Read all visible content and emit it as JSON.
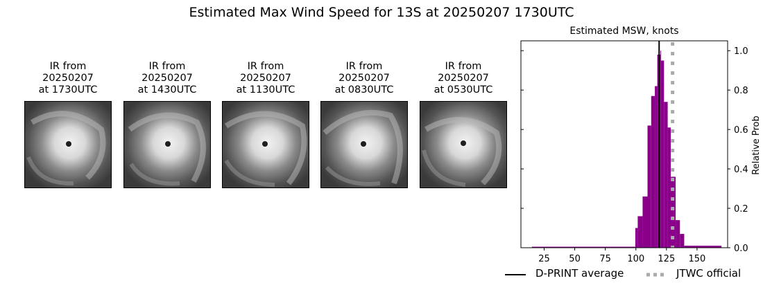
{
  "suptitle": "Estimated Max Wind Speed for 13S at 20250207 1730UTC",
  "panels": [
    {
      "title": "IR from\n20250207\nat 1730UTC",
      "line1": "IR from",
      "line2": "20250207",
      "line3": "at 1730UTC"
    },
    {
      "title": "IR from\n20250207\nat 1430UTC",
      "line1": "IR from",
      "line2": "20250207",
      "line3": "at 1430UTC"
    },
    {
      "title": "IR from\n20250207\nat 1130UTC",
      "line1": "IR from",
      "line2": "20250207",
      "line3": "at 1130UTC"
    },
    {
      "title": "IR from\n20250207\nat 0830UTC",
      "line1": "IR from",
      "line2": "20250207",
      "line3": "at 0830UTC"
    },
    {
      "title": "IR from\n20250207\nat 0530UTC",
      "line1": "IR from",
      "line2": "20250207",
      "line3": "at 0530UTC"
    }
  ],
  "chart_data": {
    "type": "bar",
    "title": "Estimated MSW, knots",
    "xlabel": "",
    "ylabel": "Relative Prob",
    "xlim": [
      6,
      175
    ],
    "ylim": [
      0,
      1.05
    ],
    "xticks": [
      25,
      50,
      75,
      100,
      125,
      150
    ],
    "yticks": [
      0.0,
      0.2,
      0.4,
      0.6,
      0.8,
      1.0
    ],
    "ytick_labels": [
      "0.0",
      "0.2",
      "0.4",
      "0.6",
      "0.8",
      "1.0"
    ],
    "y_axis_side": "right",
    "grid": false,
    "bar_color": "#8b008b",
    "bins": [
      {
        "x0": 15,
        "x1": 99.5,
        "value": 0.005
      },
      {
        "x0": 99.5,
        "x1": 101.5,
        "value": 0.1
      },
      {
        "x0": 101.5,
        "x1": 105.5,
        "value": 0.16
      },
      {
        "x0": 105.5,
        "x1": 109.5,
        "value": 0.26
      },
      {
        "x0": 109.5,
        "x1": 112.5,
        "value": 0.62
      },
      {
        "x0": 112.5,
        "x1": 115.5,
        "value": 0.77
      },
      {
        "x0": 115.5,
        "x1": 117.5,
        "value": 0.82
      },
      {
        "x0": 117.5,
        "x1": 120,
        "value": 0.98
      },
      {
        "x0": 120,
        "x1": 120.5,
        "value": 1.0
      },
      {
        "x0": 120.5,
        "x1": 123,
        "value": 0.95
      },
      {
        "x0": 123,
        "x1": 126,
        "value": 0.74
      },
      {
        "x0": 126,
        "x1": 128.5,
        "value": 0.61
      },
      {
        "x0": 128.5,
        "x1": 132.5,
        "value": 0.36
      },
      {
        "x0": 132.5,
        "x1": 136,
        "value": 0.14
      },
      {
        "x0": 136,
        "x1": 139.5,
        "value": 0.07
      },
      {
        "x0": 139.5,
        "x1": 170,
        "value": 0.01
      }
    ],
    "lines": [
      {
        "name": "D-PRINT average",
        "x": 119,
        "color": "#000000",
        "style": "solid"
      },
      {
        "name": "JTWC official",
        "x": 130,
        "color": "#aaaaaa",
        "style": "dotted"
      }
    ],
    "legend": {
      "position": "bottom",
      "entries": [
        "D-PRINT average",
        "JTWC official"
      ]
    }
  },
  "legend": {
    "dprint_label": "D-PRINT average",
    "jtwc_label": "JTWC official"
  }
}
